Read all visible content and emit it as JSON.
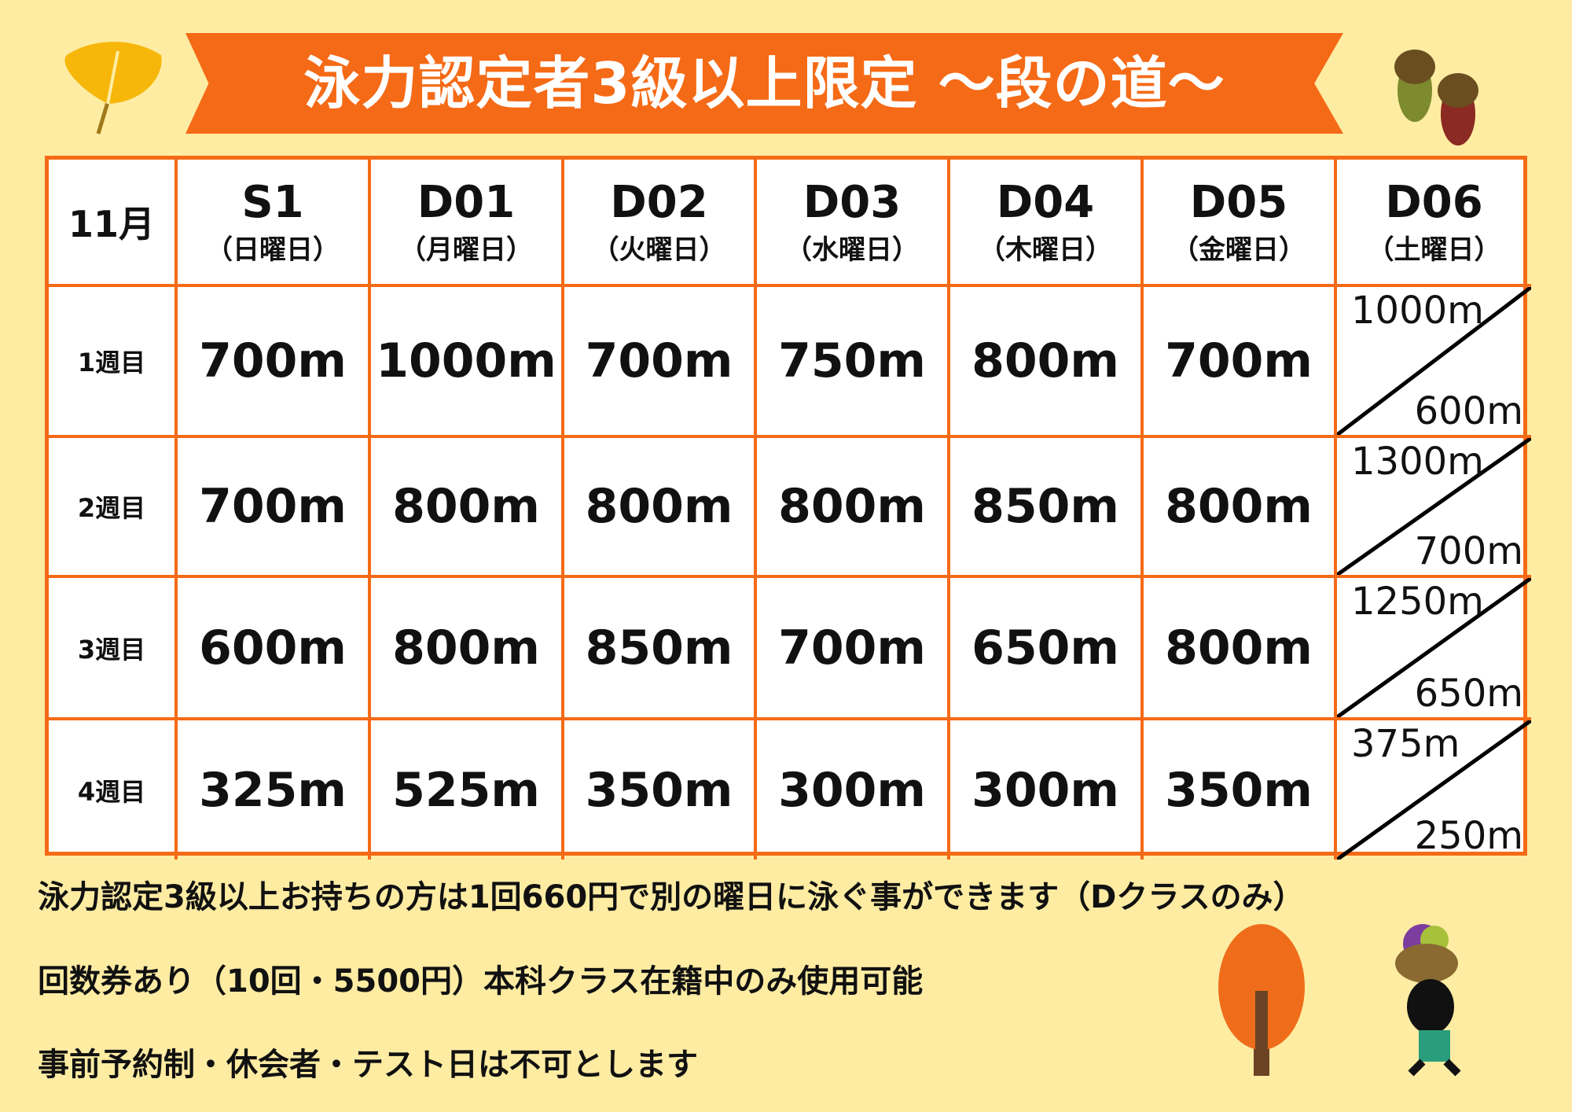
{
  "title": "泳力認定者3級以上限定 〜段の道〜",
  "table": {
    "corner": "11月",
    "columns": [
      {
        "code": "S1",
        "day": "（日曜日）"
      },
      {
        "code": "D01",
        "day": "（月曜日）"
      },
      {
        "code": "D02",
        "day": "（火曜日）"
      },
      {
        "code": "D03",
        "day": "（水曜日）"
      },
      {
        "code": "D04",
        "day": "（木曜日）"
      },
      {
        "code": "D05",
        "day": "（金曜日）"
      },
      {
        "code": "D06",
        "day": "（土曜日）"
      }
    ],
    "rows": [
      {
        "week": "1週目",
        "values": [
          "700m",
          "1000m",
          "700m",
          "750m",
          "800m",
          "700m"
        ],
        "d06": [
          "1000m",
          "600m"
        ]
      },
      {
        "week": "2週目",
        "values": [
          "700m",
          "800m",
          "800m",
          "800m",
          "850m",
          "800m"
        ],
        "d06": [
          "1300m",
          "700m"
        ]
      },
      {
        "week": "3週目",
        "values": [
          "600m",
          "800m",
          "850m",
          "700m",
          "650m",
          "800m"
        ],
        "d06": [
          "1250m",
          "650m"
        ]
      },
      {
        "week": "4週目",
        "values": [
          "325m",
          "525m",
          "350m",
          "300m",
          "300m",
          "350m"
        ],
        "d06": [
          "375m",
          "250m"
        ]
      }
    ]
  },
  "notes": [
    "泳力認定3級以上お持ちの方は1回660円で別の曜日に泳ぐ事ができます（Dクラスのみ）",
    "回数券あり（10回・5500円）本科クラス在籍中のみ使用可能",
    "事前予約制・休会者・テスト日は不可とします"
  ],
  "colors": {
    "accent": "#f56a16",
    "background": "#feeca3"
  },
  "decorations": [
    "ginkgo-leaf",
    "acorns",
    "autumn-tree",
    "character-with-fruit-basket"
  ]
}
